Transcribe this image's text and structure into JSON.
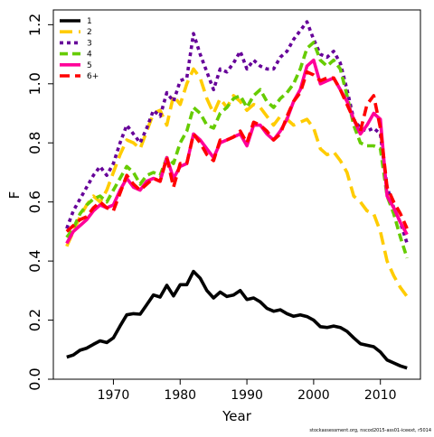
{
  "chart_data": {
    "type": "line",
    "title": "",
    "xlabel": "Year",
    "ylabel": "F",
    "xlim": [
      1961,
      2016
    ],
    "ylim": [
      0,
      1.25
    ],
    "x_ticks": [
      1970,
      1980,
      1990,
      2000,
      2010
    ],
    "y_ticks": [
      0.0,
      0.2,
      0.4,
      0.6,
      0.8,
      1.0,
      1.2
    ],
    "x_tick_labels": [
      "1970",
      "1980",
      "1990",
      "2000",
      "2010"
    ],
    "y_tick_labels": [
      "0.0",
      "0.2",
      "0.4",
      "0.6",
      "0.8",
      "1.0",
      "1.2"
    ],
    "grid": false,
    "legend_position": "top-left",
    "x": [
      1963,
      1964,
      1965,
      1966,
      1967,
      1968,
      1969,
      1970,
      1971,
      1972,
      1973,
      1974,
      1975,
      1976,
      1977,
      1978,
      1979,
      1980,
      1981,
      1982,
      1983,
      1984,
      1985,
      1986,
      1987,
      1988,
      1989,
      1990,
      1991,
      1992,
      1993,
      1994,
      1995,
      1996,
      1997,
      1998,
      1999,
      2000,
      2001,
      2002,
      2003,
      2004,
      2005,
      2006,
      2007,
      2008,
      2009,
      2010,
      2011,
      2012,
      2013,
      2014
    ],
    "series": [
      {
        "name": "1",
        "color": "#000000",
        "dash": "solid",
        "values": [
          0.075,
          0.082,
          0.098,
          0.105,
          0.118,
          0.13,
          0.124,
          0.14,
          0.18,
          0.218,
          0.222,
          0.22,
          0.252,
          0.285,
          0.278,
          0.318,
          0.282,
          0.32,
          0.32,
          0.365,
          0.342,
          0.3,
          0.275,
          0.295,
          0.28,
          0.285,
          0.3,
          0.27,
          0.275,
          0.262,
          0.24,
          0.23,
          0.235,
          0.222,
          0.213,
          0.218,
          0.212,
          0.2,
          0.178,
          0.175,
          0.18,
          0.175,
          0.162,
          0.14,
          0.12,
          0.115,
          0.11,
          0.092,
          0.065,
          0.055,
          0.045,
          0.038
        ]
      },
      {
        "name": "2",
        "color": "#ffcc00",
        "dash": "14,7",
        "values": [
          0.45,
          0.5,
          0.55,
          0.59,
          0.62,
          0.6,
          0.64,
          0.7,
          0.76,
          0.81,
          0.8,
          0.78,
          0.84,
          0.9,
          0.91,
          0.86,
          0.96,
          0.93,
          1.0,
          1.05,
          1.02,
          0.95,
          0.9,
          0.95,
          0.92,
          0.96,
          0.94,
          0.91,
          0.93,
          0.92,
          0.89,
          0.86,
          0.89,
          0.88,
          0.86,
          0.87,
          0.88,
          0.85,
          0.78,
          0.76,
          0.77,
          0.74,
          0.7,
          0.62,
          0.6,
          0.57,
          0.56,
          0.5,
          0.4,
          0.35,
          0.31,
          0.28
        ]
      },
      {
        "name": "3",
        "color": "#660099",
        "dash": "4,4",
        "values": [
          0.51,
          0.57,
          0.61,
          0.65,
          0.69,
          0.72,
          0.69,
          0.73,
          0.8,
          0.86,
          0.83,
          0.8,
          0.85,
          0.91,
          0.89,
          0.97,
          0.94,
          1.01,
          1.02,
          1.17,
          1.1,
          1.04,
          0.98,
          1.05,
          1.04,
          1.07,
          1.11,
          1.05,
          1.08,
          1.06,
          1.05,
          1.05,
          1.09,
          1.11,
          1.15,
          1.18,
          1.21,
          1.15,
          1.1,
          1.09,
          1.11,
          1.07,
          0.98,
          0.88,
          0.85,
          0.84,
          0.85,
          0.83,
          0.65,
          0.58,
          0.53,
          0.46
        ]
      },
      {
        "name": "4",
        "color": "#66cc00",
        "dash": "9,5",
        "values": [
          0.48,
          0.51,
          0.56,
          0.59,
          0.61,
          0.62,
          0.6,
          0.64,
          0.68,
          0.72,
          0.7,
          0.66,
          0.69,
          0.7,
          0.69,
          0.75,
          0.73,
          0.8,
          0.84,
          0.92,
          0.9,
          0.86,
          0.85,
          0.9,
          0.92,
          0.95,
          0.96,
          0.92,
          0.96,
          0.98,
          0.94,
          0.92,
          0.95,
          0.97,
          1.0,
          1.05,
          1.12,
          1.14,
          1.08,
          1.06,
          1.08,
          1.05,
          0.96,
          0.86,
          0.8,
          0.79,
          0.79,
          0.78,
          0.62,
          0.56,
          0.48,
          0.41
        ]
      },
      {
        "name": "5",
        "color": "#ff0099",
        "dash": "solid",
        "values": [
          0.46,
          0.5,
          0.52,
          0.54,
          0.57,
          0.59,
          0.58,
          0.59,
          0.64,
          0.68,
          0.65,
          0.64,
          0.67,
          0.68,
          0.67,
          0.75,
          0.68,
          0.72,
          0.73,
          0.83,
          0.81,
          0.78,
          0.75,
          0.8,
          0.81,
          0.82,
          0.83,
          0.79,
          0.86,
          0.86,
          0.83,
          0.81,
          0.84,
          0.88,
          0.94,
          0.98,
          1.06,
          1.08,
          1.0,
          1.01,
          1.02,
          0.98,
          0.94,
          0.88,
          0.83,
          0.86,
          0.9,
          0.88,
          0.62,
          0.58,
          0.53,
          0.49
        ]
      },
      {
        "name": "6+",
        "color": "#ff0000",
        "dash": "11,6",
        "values": [
          0.5,
          0.52,
          0.54,
          0.55,
          0.58,
          0.6,
          0.58,
          0.57,
          0.63,
          0.69,
          0.66,
          0.64,
          0.66,
          0.68,
          0.67,
          0.75,
          0.65,
          0.73,
          0.73,
          0.83,
          0.8,
          0.76,
          0.74,
          0.81,
          0.81,
          0.82,
          0.84,
          0.8,
          0.87,
          0.86,
          0.84,
          0.81,
          0.83,
          0.89,
          0.94,
          0.97,
          1.04,
          1.03,
          1.01,
          1.02,
          1.02,
          0.98,
          0.93,
          0.88,
          0.84,
          0.93,
          0.96,
          0.85,
          0.65,
          0.6,
          0.56,
          0.51
        ]
      }
    ]
  },
  "footer_text": "stockassessment.org, nscod2015-ass01-iceext, r5014"
}
